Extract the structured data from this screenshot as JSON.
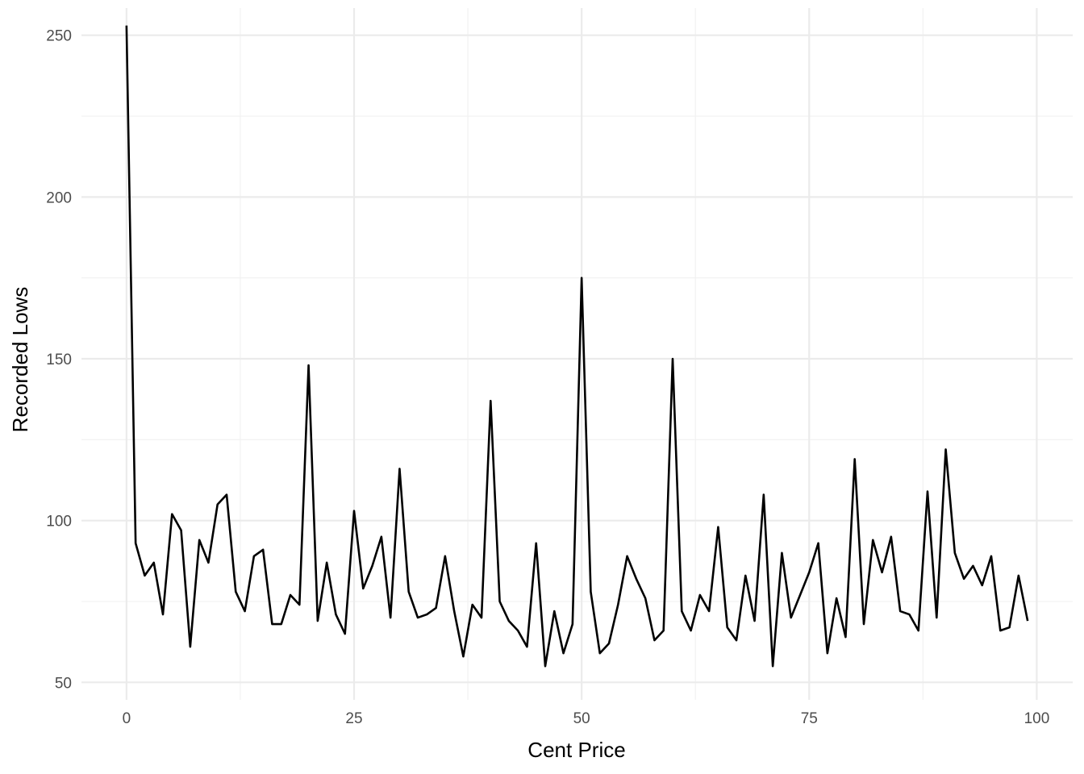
{
  "chart_data": {
    "type": "line",
    "title": "",
    "xlabel": "Cent Price",
    "ylabel": "Recorded Lows",
    "xlim": [
      -4.95,
      103.95
    ],
    "ylim": [
      44.6,
      258.4
    ],
    "x_ticks": [
      0,
      25,
      50,
      75,
      100
    ],
    "x_tick_labels": [
      "0",
      "25",
      "50",
      "75",
      "100"
    ],
    "y_ticks": [
      50,
      100,
      150,
      200,
      250
    ],
    "y_tick_labels": [
      "50",
      "100",
      "150",
      "200",
      "250"
    ],
    "grid": true,
    "line_color": "#000000",
    "series": [
      {
        "x": [
          0,
          1,
          2,
          3,
          4,
          5,
          6,
          7,
          8,
          9,
          10,
          11,
          12,
          13,
          14,
          15,
          16,
          17,
          18,
          19,
          20,
          21,
          22,
          23,
          24,
          25,
          26,
          27,
          28,
          29,
          30,
          31,
          32,
          33,
          34,
          35,
          36,
          37,
          38,
          39,
          40,
          41,
          42,
          43,
          44,
          45,
          46,
          47,
          48,
          49,
          50,
          51,
          52,
          53,
          54,
          55,
          56,
          57,
          58,
          59,
          60,
          61,
          62,
          63,
          64,
          65,
          66,
          67,
          68,
          69,
          70,
          71,
          72,
          73,
          74,
          75,
          76,
          77,
          78,
          79,
          80,
          81,
          82,
          83,
          84,
          85,
          86,
          87,
          88,
          89,
          90,
          91,
          92,
          93,
          94,
          95,
          96,
          97,
          98,
          99
        ],
        "values": [
          253,
          93,
          83,
          87,
          71,
          102,
          97,
          61,
          94,
          87,
          105,
          108,
          78,
          72,
          89,
          91,
          68,
          68,
          77,
          74,
          148,
          69,
          87,
          71,
          65,
          103,
          79,
          86,
          95,
          70,
          116,
          78,
          70,
          71,
          73,
          89,
          72,
          58,
          74,
          70,
          137,
          75,
          69,
          66,
          61,
          93,
          55,
          72,
          59,
          68,
          175,
          78,
          59,
          62,
          74,
          89,
          82,
          76,
          63,
          66,
          150,
          72,
          66,
          77,
          72,
          98,
          67,
          63,
          83,
          69,
          108,
          55,
          90,
          70,
          77,
          84,
          93,
          59,
          76,
          64,
          119,
          68,
          94,
          84,
          95,
          72,
          71,
          66,
          109,
          70,
          122,
          90,
          82,
          86,
          80,
          89,
          66,
          67,
          83,
          69
        ]
      }
    ]
  }
}
